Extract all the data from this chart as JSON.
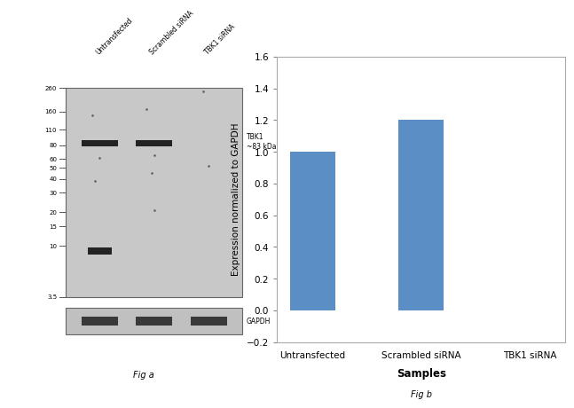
{
  "bar_categories": [
    "Untransfected",
    "Scrambled siRNA",
    "TBK1 siRNA"
  ],
  "bar_values": [
    1.0,
    1.2,
    0.0
  ],
  "bar_color": "#5B8EC5",
  "ylabel": "Expression normalized to GAPDH",
  "xlabel": "Samples",
  "ylim": [
    -0.2,
    1.6
  ],
  "yticks": [
    -0.2,
    0.0,
    0.2,
    0.4,
    0.6,
    0.8,
    1.0,
    1.2,
    1.4,
    1.6
  ],
  "fig_b_label": "Fig b",
  "fig_a_label": "Fig a",
  "wb_label_tbk1": "TBK1\n~83 kDa",
  "wb_label_gapdh": "GAPDH",
  "mw_markers": [
    260,
    160,
    110,
    80,
    60,
    50,
    40,
    30,
    20,
    15,
    10,
    3.5
  ],
  "col_labels": [
    "Untransfected",
    "Scrambled siRNA",
    "TBK1 siRNA"
  ],
  "background_color": "#ffffff",
  "wb_bg": "#c8c8c8",
  "gapdh_bg": "#c0c0c0",
  "band_color": "#111111",
  "dot_color": "#555555",
  "border_color": "#666666"
}
